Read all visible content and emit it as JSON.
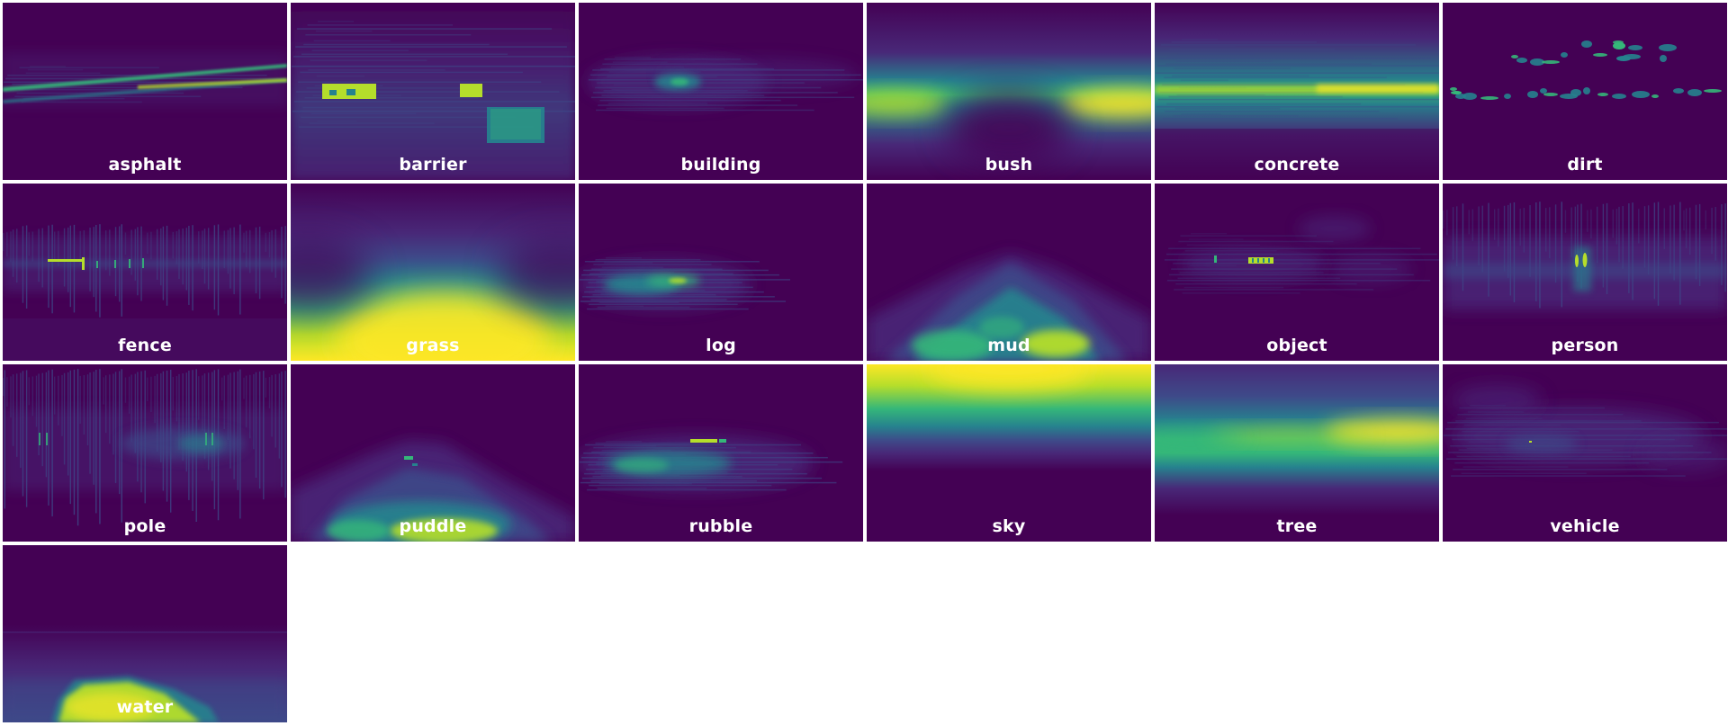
{
  "colormap": {
    "background": "#440154",
    "low": "#482878",
    "mid_low": "#3e4a89",
    "mid": "#26828e",
    "mid_high": "#35b779",
    "high": "#b5de2b",
    "peak": "#fde725"
  },
  "tiles": [
    {
      "label": "asphalt",
      "pattern": "asphalt"
    },
    {
      "label": "barrier",
      "pattern": "barrier"
    },
    {
      "label": "building",
      "pattern": "building"
    },
    {
      "label": "bush",
      "pattern": "bush"
    },
    {
      "label": "concrete",
      "pattern": "concrete"
    },
    {
      "label": "dirt",
      "pattern": "dirt"
    },
    {
      "label": "fence",
      "pattern": "fence"
    },
    {
      "label": "grass",
      "pattern": "grass"
    },
    {
      "label": "log",
      "pattern": "log"
    },
    {
      "label": "mud",
      "pattern": "mud"
    },
    {
      "label": "object",
      "pattern": "object"
    },
    {
      "label": "person",
      "pattern": "person"
    },
    {
      "label": "pole",
      "pattern": "pole"
    },
    {
      "label": "puddle",
      "pattern": "puddle"
    },
    {
      "label": "rubble",
      "pattern": "rubble"
    },
    {
      "label": "sky",
      "pattern": "sky"
    },
    {
      "label": "tree",
      "pattern": "tree"
    },
    {
      "label": "vehicle",
      "pattern": "vehicle"
    },
    {
      "label": "water",
      "pattern": "water"
    }
  ]
}
